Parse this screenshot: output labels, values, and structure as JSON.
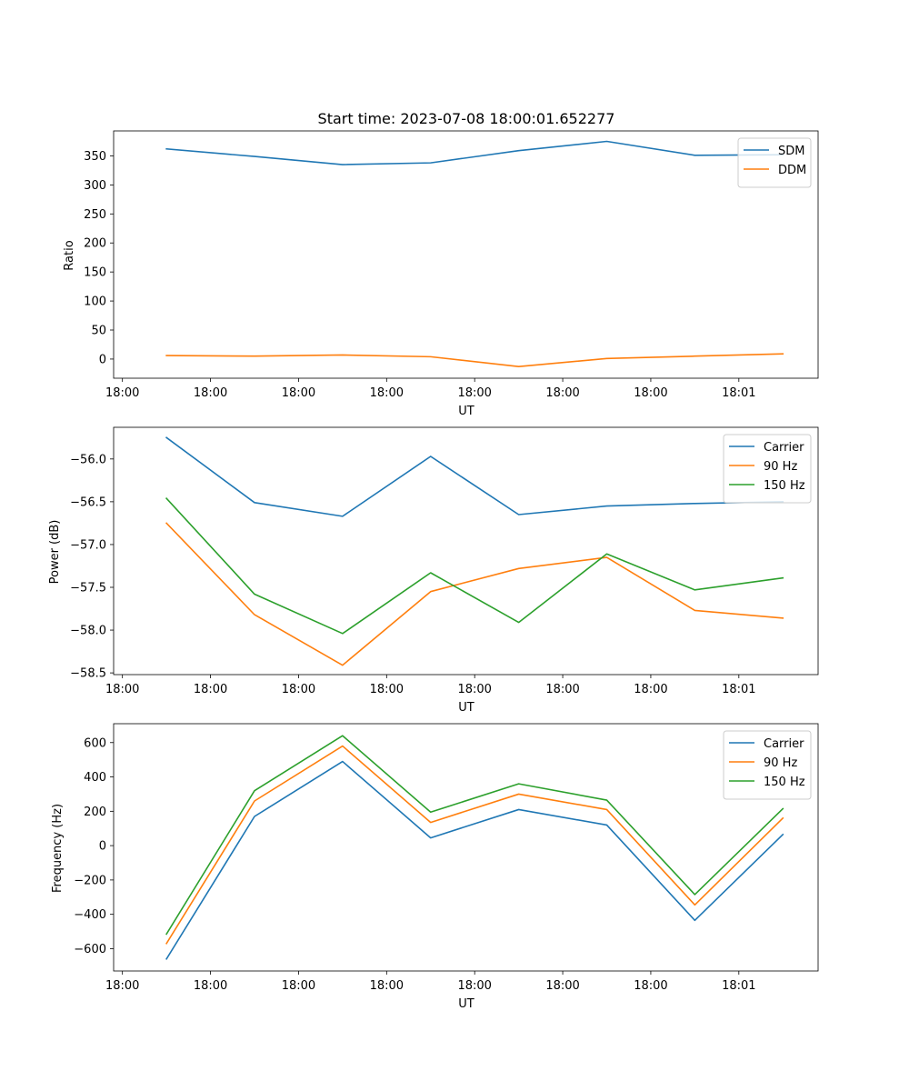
{
  "chart_data": [
    {
      "type": "line",
      "title": "Start time: 2023-07-08 18:00:01.652277",
      "xlabel": "UT",
      "ylabel": "Ratio",
      "x_ticks": [
        "18:00",
        "18:00",
        "18:00",
        "18:00",
        "18:00",
        "18:00",
        "18:00",
        "18:01"
      ],
      "x": [
        1,
        2,
        3,
        4,
        5,
        6,
        7,
        8
      ],
      "xlim": [
        0.4,
        8.4
      ],
      "ylim": [
        -33,
        393
      ],
      "y_ticks": [
        0,
        50,
        100,
        150,
        200,
        250,
        300,
        350
      ],
      "legend_position": "top-right",
      "series": [
        {
          "name": "SDM",
          "color": "#1f77b4",
          "values": [
            362,
            349,
            335,
            338,
            359,
            375,
            351,
            352
          ]
        },
        {
          "name": "DDM",
          "color": "#ff7f0e",
          "values": [
            6,
            5,
            7,
            4,
            -13,
            1,
            5,
            9
          ]
        }
      ]
    },
    {
      "type": "line",
      "title": "",
      "xlabel": "UT",
      "ylabel": "Power (dB)",
      "x_ticks": [
        "18:00",
        "18:00",
        "18:00",
        "18:00",
        "18:00",
        "18:00",
        "18:00",
        "18:01"
      ],
      "x": [
        1,
        2,
        3,
        4,
        5,
        6,
        7,
        8
      ],
      "xlim": [
        0.4,
        8.4
      ],
      "ylim": [
        -58.52,
        -55.63
      ],
      "y_ticks": [
        -58.5,
        -58.0,
        -57.5,
        -57.0,
        -56.5,
        -56.0
      ],
      "y_tick_labels": [
        "−58.5",
        "−58.0",
        "−57.5",
        "−57.0",
        "−56.5",
        "−56.0"
      ],
      "legend_position": "top-right",
      "series": [
        {
          "name": "Carrier",
          "color": "#1f77b4",
          "values": [
            -55.75,
            -56.51,
            -56.67,
            -55.97,
            -56.65,
            -56.55,
            -56.52,
            -56.5
          ]
        },
        {
          "name": "90 Hz",
          "color": "#ff7f0e",
          "values": [
            -56.75,
            -57.82,
            -58.41,
            -57.55,
            -57.28,
            -57.15,
            -57.77,
            -57.86
          ]
        },
        {
          "name": "150 Hz",
          "color": "#2ca02c",
          "values": [
            -56.46,
            -57.58,
            -58.04,
            -57.33,
            -57.91,
            -57.11,
            -57.53,
            -57.39
          ]
        }
      ]
    },
    {
      "type": "line",
      "title": "",
      "xlabel": "UT",
      "ylabel": "Frequency (Hz)",
      "x_ticks": [
        "18:00",
        "18:00",
        "18:00",
        "18:00",
        "18:00",
        "18:00",
        "18:00",
        "18:01"
      ],
      "x": [
        1,
        2,
        3,
        4,
        5,
        6,
        7,
        8
      ],
      "xlim": [
        0.4,
        8.4
      ],
      "ylim": [
        -730,
        710
      ],
      "y_ticks": [
        -600,
        -400,
        -200,
        0,
        200,
        400,
        600
      ],
      "y_tick_labels": [
        "−600",
        "−400",
        "−200",
        "0",
        "200",
        "400",
        "600"
      ],
      "legend_position": "top-right",
      "series": [
        {
          "name": "Carrier",
          "color": "#1f77b4",
          "values": [
            -660,
            170,
            490,
            45,
            210,
            120,
            -435,
            65
          ]
        },
        {
          "name": "90 Hz",
          "color": "#ff7f0e",
          "values": [
            -570,
            260,
            580,
            135,
            300,
            210,
            -345,
            160
          ]
        },
        {
          "name": "150 Hz",
          "color": "#2ca02c",
          "values": [
            -515,
            320,
            640,
            195,
            360,
            265,
            -285,
            215
          ]
        }
      ]
    }
  ]
}
